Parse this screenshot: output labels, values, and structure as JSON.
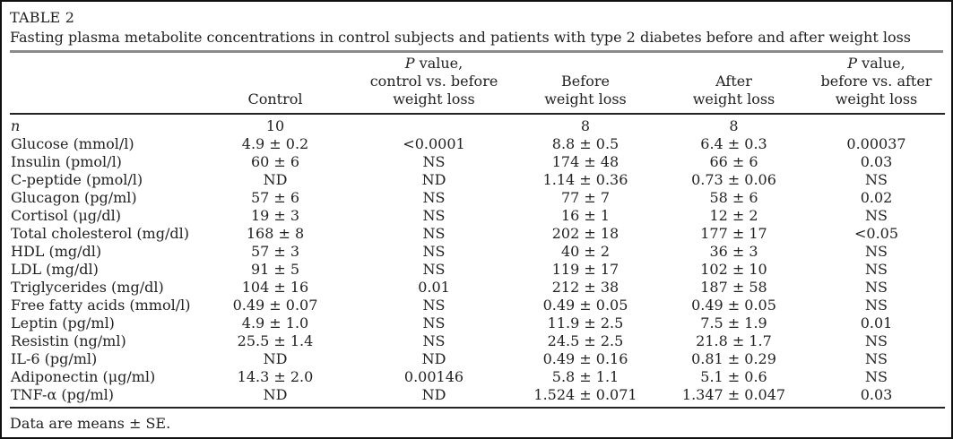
{
  "table": {
    "label": "TABLE 2",
    "caption": "Fasting plasma metabolite concentrations in control subjects and patients with type 2 diabetes before and after weight loss",
    "footnote": "Data are means ± SE.",
    "colors": {
      "text": "#222222",
      "title_rule_gray": "#8a8a8a",
      "table_rule_black": "#222222",
      "background": "#ffffff"
    },
    "headers": [
      {
        "lines": []
      },
      {
        "lines": [
          "Control"
        ]
      },
      {
        "lines": [
          "P value,",
          "control vs. before",
          "weight loss"
        ],
        "italic_p": true
      },
      {
        "lines": [
          "Before",
          "weight loss"
        ]
      },
      {
        "lines": [
          "After",
          "weight loss"
        ]
      },
      {
        "lines": [
          "P value,",
          "before vs. after",
          "weight loss"
        ],
        "italic_p": true
      }
    ],
    "rows": [
      {
        "label": "n",
        "label_italic": true,
        "cells": [
          "10",
          "",
          "8",
          "8",
          ""
        ]
      },
      {
        "label": "Glucose (mmol/l)",
        "cells": [
          "4.9 ± 0.2",
          "<0.0001",
          "8.8 ± 0.5",
          "6.4 ± 0.3",
          "0.00037"
        ]
      },
      {
        "label": "Insulin (pmol/l)",
        "cells": [
          "60 ± 6",
          "NS",
          "174 ± 48",
          "66 ± 6",
          "0.03"
        ]
      },
      {
        "label": "C-peptide (pmol/l)",
        "cells": [
          "ND",
          "ND",
          "1.14 ± 0.36",
          "0.73 ± 0.06",
          "NS"
        ]
      },
      {
        "label": "Glucagon (pg/ml)",
        "cells": [
          "57 ± 6",
          "NS",
          "77 ± 7",
          "58 ± 6",
          "0.02"
        ]
      },
      {
        "label": "Cortisol (μg/dl)",
        "cells": [
          "19 ± 3",
          "NS",
          "16 ± 1",
          "12 ± 2",
          "NS"
        ]
      },
      {
        "label": "Total cholesterol (mg/dl)",
        "cells": [
          "168 ± 8",
          "NS",
          "202 ± 18",
          "177 ± 17",
          "<0.05"
        ]
      },
      {
        "label": "HDL (mg/dl)",
        "cells": [
          "57 ± 3",
          "NS",
          "40 ± 2",
          "36 ± 3",
          "NS"
        ]
      },
      {
        "label": "LDL (mg/dl)",
        "cells": [
          "91 ± 5",
          "NS",
          "119 ± 17",
          "102 ± 10",
          "NS"
        ]
      },
      {
        "label": "Triglycerides (mg/dl)",
        "cells": [
          "104 ± 16",
          "0.01",
          "212 ± 38",
          "187 ± 58",
          "NS"
        ]
      },
      {
        "label": "Free fatty acids (mmol/l)",
        "cells": [
          "0.49 ± 0.07",
          "NS",
          "0.49 ± 0.05",
          "0.49 ± 0.05",
          "NS"
        ]
      },
      {
        "label": "Leptin (pg/ml)",
        "cells": [
          "4.9 ± 1.0",
          "NS",
          "11.9 ± 2.5",
          "7.5 ± 1.9",
          "0.01"
        ]
      },
      {
        "label": "Resistin (ng/ml)",
        "cells": [
          "25.5 ± 1.4",
          "NS",
          "24.5 ± 2.5",
          "21.8 ± 1.7",
          "NS"
        ]
      },
      {
        "label": "IL-6 (pg/ml)",
        "cells": [
          "ND",
          "ND",
          "0.49 ± 0.16",
          "0.81 ± 0.29",
          "NS"
        ]
      },
      {
        "label": "Adiponectin (μg/ml)",
        "cells": [
          "14.3 ± 2.0",
          "0.00146",
          "5.8 ± 1.1",
          "5.1 ± 0.6",
          "NS"
        ]
      },
      {
        "label": "TNF-α (pg/ml)",
        "cells": [
          "ND",
          "ND",
          "1.524 ± 0.071",
          "1.347 ± 0.047",
          "0.03"
        ]
      }
    ]
  }
}
